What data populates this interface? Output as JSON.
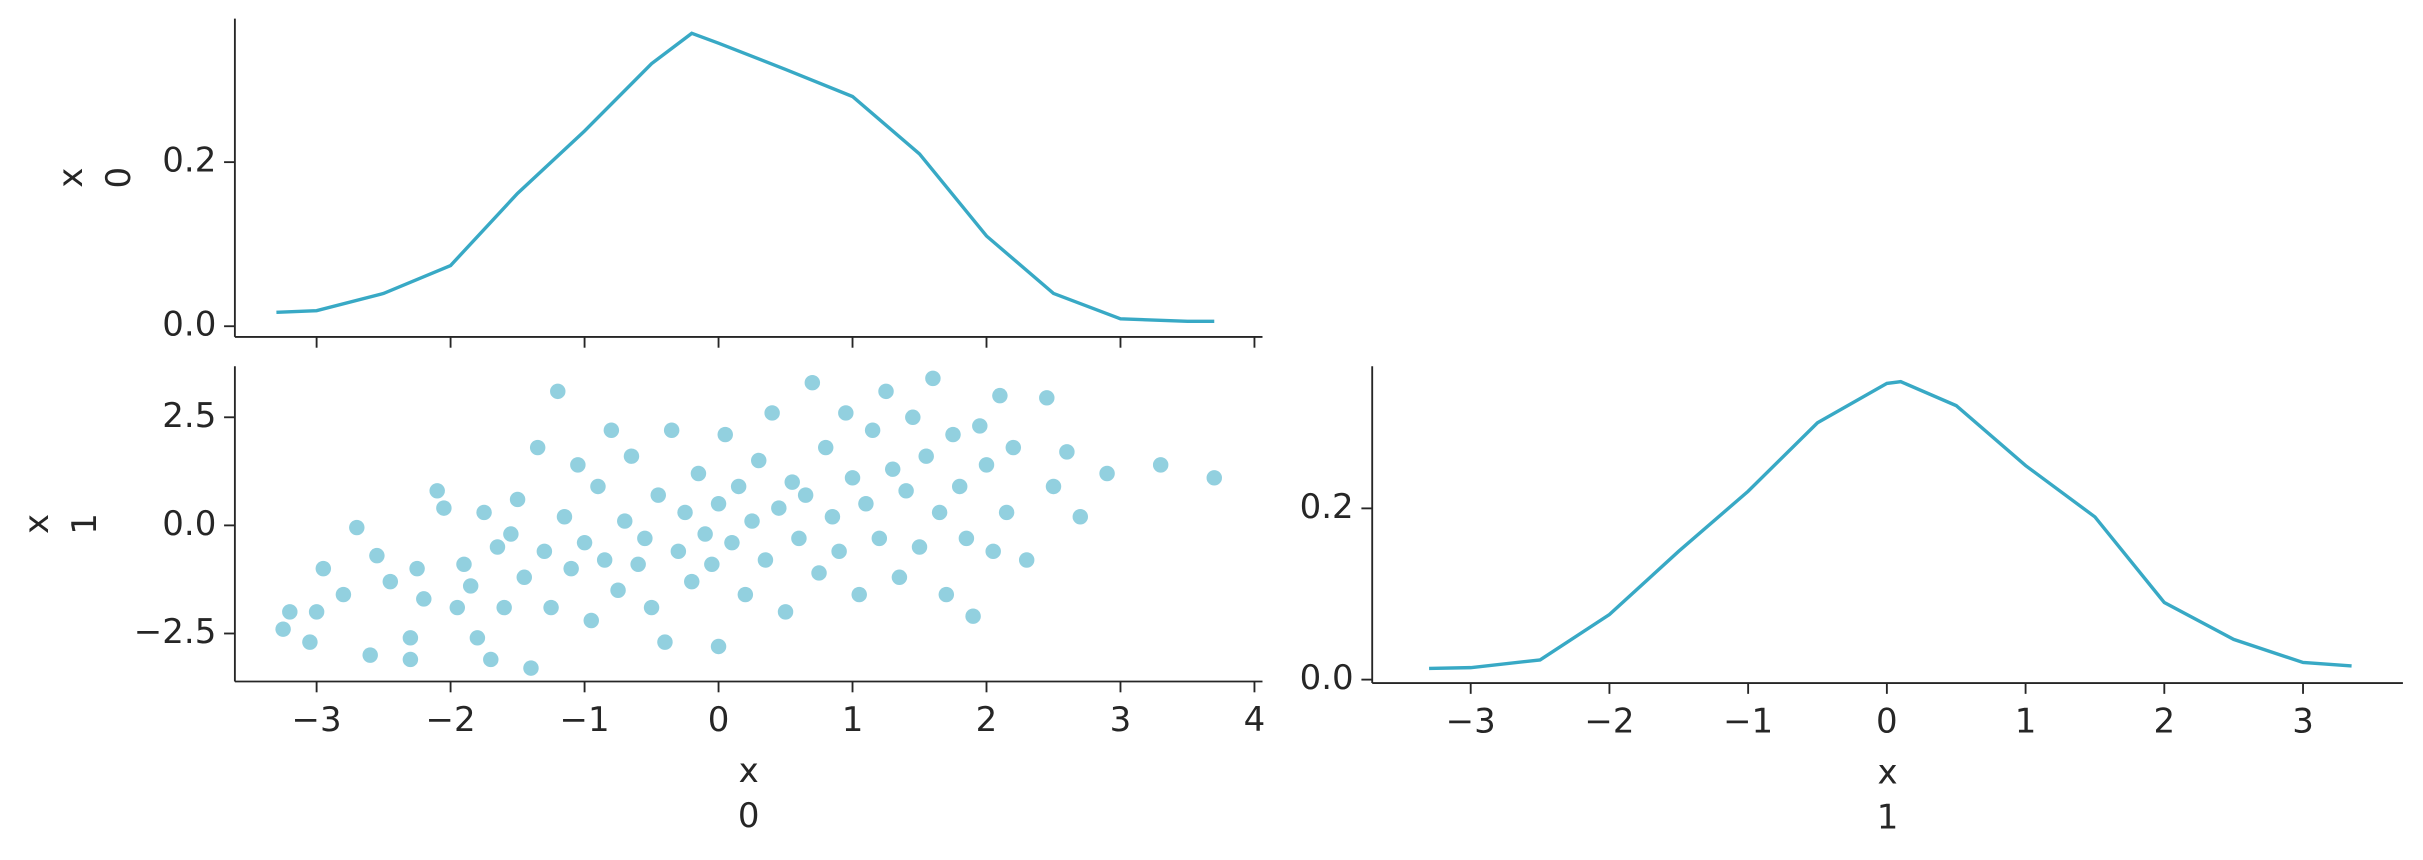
{
  "chart_data": [
    {
      "type": "line",
      "color": "#38a9c5",
      "ylabel": [
        "x",
        "0"
      ],
      "x": [
        -3.3,
        -3,
        -2.5,
        -2,
        -1.5,
        -1,
        -0.5,
        -0.2,
        0,
        0.5,
        1,
        1.5,
        2,
        2.5,
        3,
        3.5,
        3.7
      ],
      "values": [
        0.017,
        0.019,
        0.04,
        0.074,
        0.162,
        0.238,
        0.32,
        0.357,
        0.345,
        0.313,
        0.28,
        0.21,
        0.11,
        0.04,
        0.009,
        0.006,
        0.006
      ],
      "xlim": [
        -3.61,
        4.06
      ],
      "xticks": [
        -3,
        -2,
        -1,
        0,
        1,
        2,
        3,
        4
      ],
      "ylim": [
        -0.013,
        0.375
      ],
      "yticks": [
        {
          "value": 0,
          "label": "0.0"
        },
        0.2
      ]
    },
    {
      "type": "scatter",
      "color": "#38a9c5",
      "xlabel": [
        "x",
        "0"
      ],
      "ylabel": [
        "x",
        "1"
      ],
      "x": [
        -3.25,
        -3.2,
        -3.05,
        -3.0,
        -2.95,
        -2.8,
        -2.7,
        -2.6,
        -2.55,
        -2.45,
        -2.3,
        -2.3,
        -2.25,
        -2.2,
        -2.1,
        -2.05,
        -1.95,
        -1.9,
        -1.85,
        -1.8,
        -1.75,
        -1.7,
        -1.65,
        -1.6,
        -1.55,
        -1.5,
        -1.45,
        -1.4,
        -1.35,
        -1.3,
        -1.25,
        -1.2,
        -1.15,
        -1.1,
        -1.05,
        -1.0,
        -0.95,
        -0.9,
        -0.85,
        -0.8,
        -0.75,
        -0.7,
        -0.65,
        -0.6,
        -0.55,
        -0.5,
        -0.45,
        -0.4,
        -0.35,
        -0.3,
        -0.25,
        -0.2,
        -0.15,
        -0.1,
        -0.05,
        0.0,
        0.0,
        0.05,
        0.1,
        0.15,
        0.2,
        0.25,
        0.3,
        0.35,
        0.4,
        0.45,
        0.5,
        0.55,
        0.6,
        0.65,
        0.7,
        0.75,
        0.8,
        0.85,
        0.9,
        0.95,
        1.0,
        1.05,
        1.1,
        1.15,
        1.2,
        1.25,
        1.3,
        1.35,
        1.4,
        1.45,
        1.5,
        1.55,
        1.6,
        1.65,
        1.7,
        1.75,
        1.8,
        1.85,
        1.9,
        1.95,
        2.0,
        2.05,
        2.1,
        2.15,
        2.2,
        2.3,
        2.45,
        2.5,
        2.6,
        2.7,
        2.9,
        3.3,
        3.7
      ],
      "values": [
        -2.4,
        -2.0,
        -2.7,
        -2.0,
        -1.0,
        -1.6,
        -0.05,
        -3.0,
        -0.7,
        -1.3,
        -3.1,
        -2.6,
        -1.0,
        -1.7,
        0.8,
        0.4,
        -1.9,
        -0.9,
        -1.4,
        -2.6,
        0.3,
        -3.1,
        -0.5,
        -1.9,
        -0.2,
        0.6,
        -1.2,
        -3.3,
        1.8,
        -0.6,
        -1.9,
        3.1,
        0.2,
        -1.0,
        1.4,
        -0.4,
        -2.2,
        0.9,
        -0.8,
        2.2,
        -1.5,
        0.1,
        1.6,
        -0.9,
        -0.3,
        -1.9,
        0.7,
        -2.7,
        2.2,
        -0.6,
        0.3,
        -1.3,
        1.2,
        -0.2,
        -0.9,
        -2.8,
        0.5,
        2.1,
        -0.4,
        0.9,
        -1.6,
        0.1,
        1.5,
        -0.8,
        2.6,
        0.4,
        -2.0,
        1.0,
        -0.3,
        0.7,
        3.3,
        -1.1,
        1.8,
        0.2,
        -0.6,
        2.6,
        1.1,
        -1.6,
        0.5,
        2.2,
        -0.3,
        3.1,
        1.3,
        -1.2,
        0.8,
        2.5,
        -0.5,
        1.6,
        3.4,
        0.3,
        -1.6,
        2.1,
        0.9,
        -0.3,
        -2.1,
        2.3,
        1.4,
        -0.6,
        3.0,
        0.3,
        1.8,
        -0.8,
        2.95,
        0.9,
        1.7,
        0.2,
        1.2,
        1.4,
        1.1
      ],
      "xlim": [
        -3.61,
        4.06
      ],
      "xticks": [
        {
          "value": -3,
          "label": "−3"
        },
        {
          "value": -2,
          "label": "−2"
        },
        {
          "value": -1,
          "label": "−1"
        },
        0,
        1,
        2,
        3,
        4
      ],
      "ylim": [
        -3.61,
        3.68
      ],
      "yticks": [
        {
          "value": -2.5,
          "label": "−2.5"
        },
        {
          "value": 0,
          "label": "0.0"
        },
        2.5
      ]
    },
    {
      "type": "line",
      "color": "#38a9c5",
      "xlabel": [
        "x",
        "1"
      ],
      "x": [
        -3.3,
        -3,
        -2.5,
        -2,
        -1.5,
        -1,
        -0.5,
        0,
        0.1,
        0.5,
        1,
        1.5,
        2,
        2.5,
        3,
        3.35
      ],
      "values": [
        0.013,
        0.014,
        0.023,
        0.076,
        0.15,
        0.22,
        0.3,
        0.346,
        0.348,
        0.32,
        0.25,
        0.19,
        0.09,
        0.047,
        0.02,
        0.016
      ],
      "xlim": [
        -3.71,
        3.72
      ],
      "xticks": [
        {
          "value": -3,
          "label": "−3"
        },
        {
          "value": -2,
          "label": "−2"
        },
        {
          "value": -1,
          "label": "−1"
        },
        0,
        1,
        2,
        3
      ],
      "ylim": [
        -0.004,
        0.366
      ],
      "yticks": [
        {
          "value": 0,
          "label": "0.0"
        },
        0.2
      ]
    }
  ]
}
